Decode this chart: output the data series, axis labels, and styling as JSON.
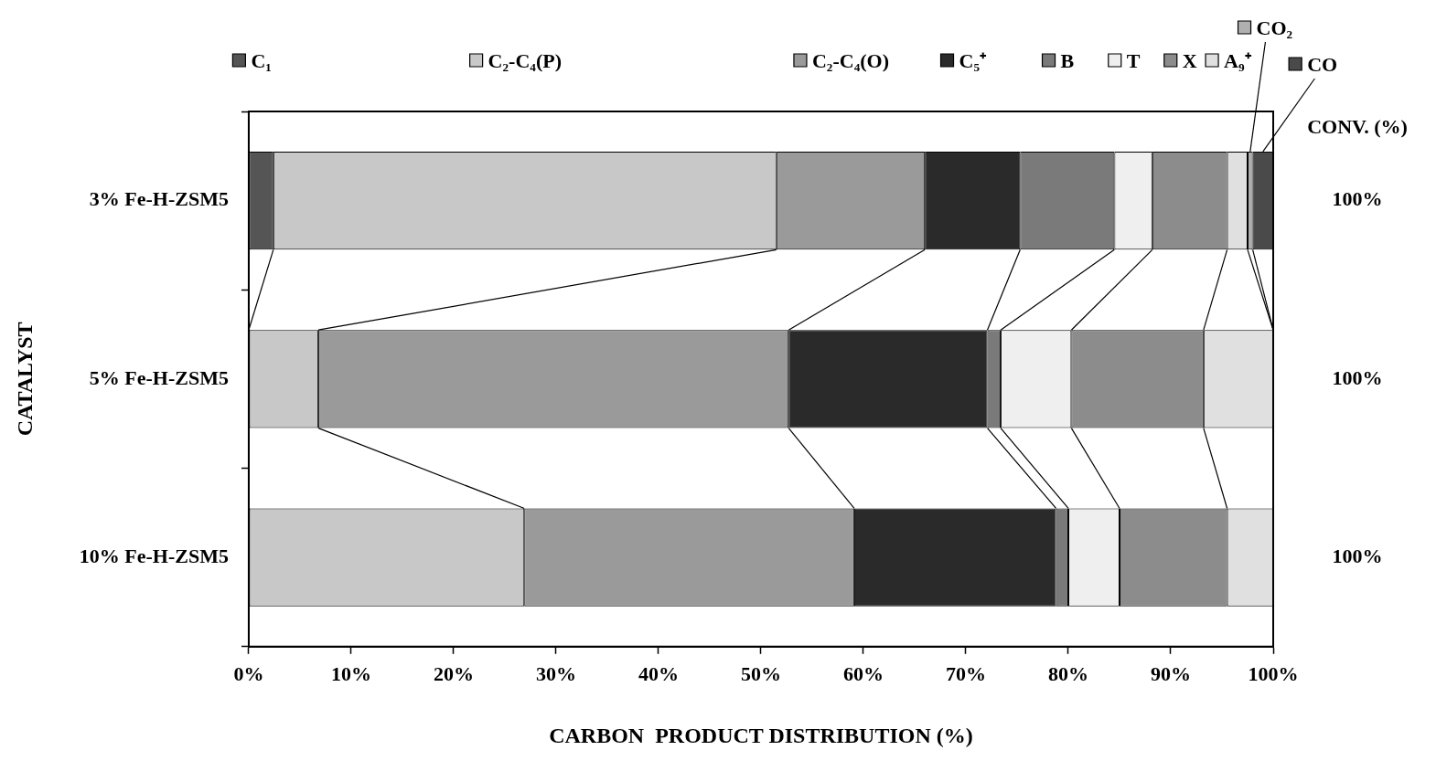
{
  "chart_data": {
    "type": "bar",
    "orientation": "horizontal",
    "stacked": true,
    "categories": [
      "3% Fe-H-ZSM5",
      "5% Fe-H-ZSM5",
      "10% Fe-H-ZSM5"
    ],
    "series": [
      {
        "name": "C₁",
        "color": "#555555",
        "values": [
          2.4,
          0,
          0
        ]
      },
      {
        "name": "C₂-C₄(P)",
        "color": "#c8c8c8",
        "values": [
          49.1,
          6.8,
          26.9
        ]
      },
      {
        "name": "C₂-C₄(O)",
        "color": "#9a9a9a",
        "values": [
          14.5,
          45.9,
          32.2
        ]
      },
      {
        "name": "C₅⁺",
        "color": "#2a2a2a",
        "values": [
          9.3,
          19.4,
          19.7
        ]
      },
      {
        "name": "B",
        "color": "#7a7a7a",
        "values": [
          9.2,
          1.3,
          1.2
        ]
      },
      {
        "name": "T",
        "color": "#efefef",
        "values": [
          3.7,
          6.9,
          5.0
        ]
      },
      {
        "name": "X",
        "color": "#8c8c8c",
        "values": [
          7.3,
          12.9,
          10.5
        ]
      },
      {
        "name": "A₉⁺",
        "color": "#e0e0e0",
        "values": [
          2.0,
          6.8,
          4.5
        ]
      },
      {
        "name": "CO₂",
        "color": "#b0b0b0",
        "values": [
          0.5,
          0,
          0
        ]
      },
      {
        "name": "CO",
        "color": "#4a4a4a",
        "values": [
          2.0,
          0,
          0
        ]
      }
    ],
    "xlim": [
      0,
      100
    ],
    "xticks": [
      {
        "value": 0,
        "label": "0%"
      },
      {
        "value": 10,
        "label": "10%"
      },
      {
        "value": 20,
        "label": "20%"
      },
      {
        "value": 30,
        "label": "30%"
      },
      {
        "value": 40,
        "label": "40%"
      },
      {
        "value": 50,
        "label": "50%"
      },
      {
        "value": 60,
        "label": "60%"
      },
      {
        "value": 70,
        "label": "70%"
      },
      {
        "value": 80,
        "label": "80%"
      },
      {
        "value": 90,
        "label": "90%"
      },
      {
        "value": 100,
        "label": "100%"
      }
    ],
    "xlabel": "CARBON  PRODUCT DISTRIBUTION (%)",
    "ylabel": "CATALYST",
    "annotations": [
      "CONV. (%)",
      "100%",
      "100%",
      "100%"
    ],
    "legend": "top",
    "grid": false
  }
}
